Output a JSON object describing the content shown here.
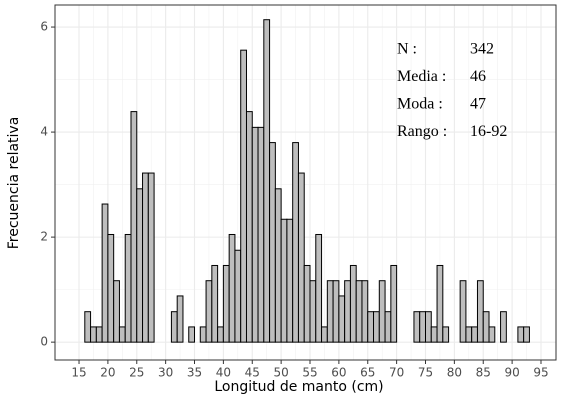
{
  "chart_data": {
    "type": "histogram",
    "xlabel": "Longitud de manto (cm)",
    "ylabel": "Frecuencia relativa",
    "bins": [
      16,
      17,
      18,
      19,
      20,
      21,
      22,
      23,
      24,
      25,
      26,
      27,
      28,
      29,
      30,
      31,
      32,
      33,
      34,
      35,
      36,
      37,
      38,
      39,
      40,
      41,
      42,
      43,
      44,
      45,
      46,
      47,
      48,
      49,
      50,
      51,
      52,
      53,
      54,
      55,
      56,
      57,
      58,
      59,
      60,
      61,
      62,
      63,
      64,
      65,
      66,
      67,
      68,
      69,
      70,
      71,
      72,
      73,
      74,
      75,
      76,
      77,
      78,
      79,
      80,
      81,
      82,
      83,
      84,
      85,
      86,
      87,
      88,
      89,
      90,
      91,
      92,
      93
    ],
    "values": [
      0.58,
      0.29,
      0.29,
      2.63,
      2.05,
      1.17,
      0.29,
      2.05,
      4.39,
      2.92,
      3.22,
      3.22,
      0,
      0,
      0,
      0.58,
      0.88,
      0,
      0.29,
      0,
      0.29,
      1.17,
      1.46,
      0.29,
      1.46,
      2.05,
      1.75,
      5.56,
      4.39,
      4.09,
      4.09,
      6.14,
      3.8,
      2.92,
      2.34,
      2.34,
      3.8,
      3.22,
      1.46,
      1.17,
      2.05,
      0.29,
      1.17,
      1.17,
      0.88,
      1.17,
      1.46,
      1.17,
      1.17,
      0.58,
      0.58,
      1.17,
      0.58,
      1.46,
      0,
      0,
      0,
      0.58,
      0.58,
      0.58,
      0.29,
      1.46,
      0.29,
      0,
      0,
      1.17,
      0.29,
      0.29,
      1.17,
      0.58,
      0.29,
      0,
      0.58,
      0,
      0,
      0.29,
      0.29
    ],
    "color": "#bebebe",
    "xlim": [
      10.84,
      97.6
    ],
    "xticks": [
      15,
      20,
      25,
      30,
      35,
      40,
      45,
      50,
      55,
      60,
      65,
      70,
      75,
      80,
      85,
      90,
      95
    ],
    "ylim": [
      -0.34,
      6.42
    ],
    "yticks": [
      0,
      2,
      4,
      6
    ],
    "grid": true,
    "annotations": [
      {
        "label": "N :",
        "text": "342"
      },
      {
        "label": "Media :",
        "text": "46"
      },
      {
        "label": "Moda :",
        "text": "47"
      },
      {
        "label": "Rango :",
        "text": "16-92"
      }
    ]
  }
}
